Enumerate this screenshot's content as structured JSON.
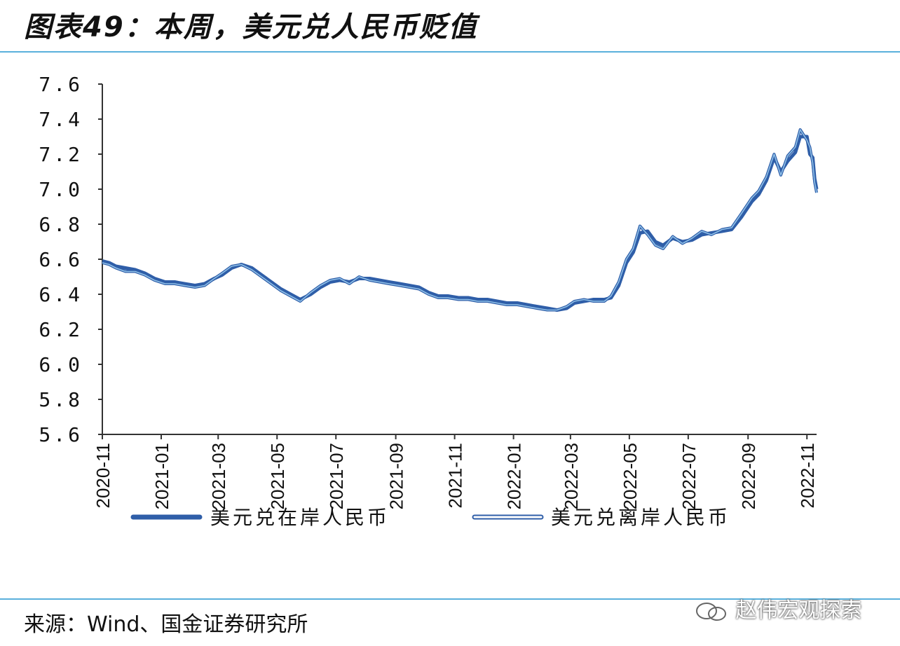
{
  "title": "图表49：本周，美元兑人民币贬值",
  "source": "来源：Wind、国金证券研究所",
  "watermark": "赵伟宏观探索",
  "colors": {
    "onshore": "#2f5ea8",
    "offshore": "#8fc0e8",
    "rule": "#5ab0dc",
    "axis": "#333333"
  },
  "chart_data": {
    "type": "line",
    "ylim": [
      5.6,
      7.6
    ],
    "yticks": [
      "7.6",
      "7.4",
      "7.2",
      "7.0",
      "6.8",
      "6.6",
      "6.4",
      "6.2",
      "6.0",
      "5.8",
      "5.6"
    ],
    "xticks": [
      "2020-11",
      "2021-01",
      "2021-03",
      "2021-05",
      "2021-07",
      "2021-09",
      "2021-11",
      "2022-01",
      "2022-03",
      "2022-05",
      "2022-07",
      "2022-09",
      "2022-11"
    ],
    "xlim": [
      "2020-11-01",
      "2022-11-11"
    ],
    "legend_position": "bottom",
    "series": [
      {
        "name": "美元兑在岸人民币",
        "points": [
          [
            "2020-11-01",
            6.59
          ],
          [
            "2020-11-08",
            6.58
          ],
          [
            "2020-11-15",
            6.56
          ],
          [
            "2020-11-25",
            6.55
          ],
          [
            "2020-12-05",
            6.54
          ],
          [
            "2020-12-15",
            6.52
          ],
          [
            "2020-12-25",
            6.49
          ],
          [
            "2021-01-05",
            6.47
          ],
          [
            "2021-01-15",
            6.47
          ],
          [
            "2021-01-25",
            6.46
          ],
          [
            "2021-02-05",
            6.45
          ],
          [
            "2021-02-15",
            6.46
          ],
          [
            "2021-02-25",
            6.49
          ],
          [
            "2021-03-05",
            6.51
          ],
          [
            "2021-03-15",
            6.55
          ],
          [
            "2021-03-25",
            6.57
          ],
          [
            "2021-04-05",
            6.55
          ],
          [
            "2021-04-15",
            6.51
          ],
          [
            "2021-04-25",
            6.47
          ],
          [
            "2021-05-05",
            6.43
          ],
          [
            "2021-05-15",
            6.4
          ],
          [
            "2021-05-25",
            6.37
          ],
          [
            "2021-06-05",
            6.4
          ],
          [
            "2021-06-15",
            6.44
          ],
          [
            "2021-06-25",
            6.47
          ],
          [
            "2021-07-05",
            6.48
          ],
          [
            "2021-07-15",
            6.47
          ],
          [
            "2021-07-25",
            6.49
          ],
          [
            "2021-08-05",
            6.49
          ],
          [
            "2021-08-15",
            6.48
          ],
          [
            "2021-08-25",
            6.47
          ],
          [
            "2021-09-05",
            6.46
          ],
          [
            "2021-09-15",
            6.45
          ],
          [
            "2021-09-25",
            6.44
          ],
          [
            "2021-10-05",
            6.41
          ],
          [
            "2021-10-15",
            6.39
          ],
          [
            "2021-10-25",
            6.39
          ],
          [
            "2021-11-05",
            6.38
          ],
          [
            "2021-11-15",
            6.38
          ],
          [
            "2021-11-25",
            6.37
          ],
          [
            "2021-12-05",
            6.37
          ],
          [
            "2021-12-15",
            6.36
          ],
          [
            "2021-12-25",
            6.35
          ],
          [
            "2022-01-05",
            6.35
          ],
          [
            "2022-01-15",
            6.34
          ],
          [
            "2022-01-25",
            6.33
          ],
          [
            "2022-02-05",
            6.32
          ],
          [
            "2022-02-15",
            6.31
          ],
          [
            "2022-02-25",
            6.32
          ],
          [
            "2022-03-05",
            6.35
          ],
          [
            "2022-03-15",
            6.36
          ],
          [
            "2022-03-25",
            6.37
          ],
          [
            "2022-04-05",
            6.37
          ],
          [
            "2022-04-12",
            6.38
          ],
          [
            "2022-04-20",
            6.45
          ],
          [
            "2022-04-28",
            6.58
          ],
          [
            "2022-05-05",
            6.64
          ],
          [
            "2022-05-12",
            6.75
          ],
          [
            "2022-05-20",
            6.76
          ],
          [
            "2022-05-28",
            6.7
          ],
          [
            "2022-06-05",
            6.68
          ],
          [
            "2022-06-15",
            6.72
          ],
          [
            "2022-06-25",
            6.7
          ],
          [
            "2022-07-05",
            6.71
          ],
          [
            "2022-07-15",
            6.74
          ],
          [
            "2022-07-25",
            6.75
          ],
          [
            "2022-08-05",
            6.76
          ],
          [
            "2022-08-15",
            6.77
          ],
          [
            "2022-08-25",
            6.84
          ],
          [
            "2022-09-05",
            6.93
          ],
          [
            "2022-09-12",
            6.97
          ],
          [
            "2022-09-20",
            7.05
          ],
          [
            "2022-09-28",
            7.18
          ],
          [
            "2022-10-05",
            7.1
          ],
          [
            "2022-10-12",
            7.16
          ],
          [
            "2022-10-20",
            7.21
          ],
          [
            "2022-10-25",
            7.3
          ],
          [
            "2022-11-01",
            7.3
          ],
          [
            "2022-11-04",
            7.2
          ],
          [
            "2022-11-07",
            7.18
          ],
          [
            "2022-11-09",
            7.06
          ],
          [
            "2022-11-11",
            7.0
          ]
        ]
      },
      {
        "name": "美元兑离岸人民币",
        "points": [
          [
            "2020-11-01",
            6.58
          ],
          [
            "2020-11-08",
            6.57
          ],
          [
            "2020-11-15",
            6.55
          ],
          [
            "2020-11-25",
            6.53
          ],
          [
            "2020-12-05",
            6.53
          ],
          [
            "2020-12-15",
            6.51
          ],
          [
            "2020-12-25",
            6.48
          ],
          [
            "2021-01-05",
            6.46
          ],
          [
            "2021-01-15",
            6.46
          ],
          [
            "2021-01-25",
            6.45
          ],
          [
            "2021-02-05",
            6.44
          ],
          [
            "2021-02-15",
            6.45
          ],
          [
            "2021-02-25",
            6.49
          ],
          [
            "2021-03-05",
            6.52
          ],
          [
            "2021-03-15",
            6.56
          ],
          [
            "2021-03-25",
            6.57
          ],
          [
            "2021-04-05",
            6.54
          ],
          [
            "2021-04-15",
            6.5
          ],
          [
            "2021-04-25",
            6.46
          ],
          [
            "2021-05-05",
            6.42
          ],
          [
            "2021-05-15",
            6.39
          ],
          [
            "2021-05-25",
            6.36
          ],
          [
            "2021-06-05",
            6.41
          ],
          [
            "2021-06-15",
            6.45
          ],
          [
            "2021-06-25",
            6.48
          ],
          [
            "2021-07-05",
            6.49
          ],
          [
            "2021-07-15",
            6.46
          ],
          [
            "2021-07-25",
            6.5
          ],
          [
            "2021-08-05",
            6.48
          ],
          [
            "2021-08-15",
            6.47
          ],
          [
            "2021-08-25",
            6.46
          ],
          [
            "2021-09-05",
            6.45
          ],
          [
            "2021-09-15",
            6.44
          ],
          [
            "2021-09-25",
            6.43
          ],
          [
            "2021-10-05",
            6.4
          ],
          [
            "2021-10-15",
            6.38
          ],
          [
            "2021-10-25",
            6.38
          ],
          [
            "2021-11-05",
            6.37
          ],
          [
            "2021-11-15",
            6.37
          ],
          [
            "2021-11-25",
            6.36
          ],
          [
            "2021-12-05",
            6.36
          ],
          [
            "2021-12-15",
            6.35
          ],
          [
            "2021-12-25",
            6.34
          ],
          [
            "2022-01-05",
            6.34
          ],
          [
            "2022-01-15",
            6.33
          ],
          [
            "2022-01-25",
            6.32
          ],
          [
            "2022-02-05",
            6.31
          ],
          [
            "2022-02-15",
            6.31
          ],
          [
            "2022-02-25",
            6.33
          ],
          [
            "2022-03-05",
            6.36
          ],
          [
            "2022-03-15",
            6.37
          ],
          [
            "2022-03-25",
            6.36
          ],
          [
            "2022-04-05",
            6.36
          ],
          [
            "2022-04-12",
            6.39
          ],
          [
            "2022-04-20",
            6.47
          ],
          [
            "2022-04-28",
            6.6
          ],
          [
            "2022-05-05",
            6.66
          ],
          [
            "2022-05-12",
            6.79
          ],
          [
            "2022-05-20",
            6.74
          ],
          [
            "2022-05-28",
            6.68
          ],
          [
            "2022-06-05",
            6.66
          ],
          [
            "2022-06-15",
            6.73
          ],
          [
            "2022-06-25",
            6.69
          ],
          [
            "2022-07-05",
            6.72
          ],
          [
            "2022-07-15",
            6.76
          ],
          [
            "2022-07-25",
            6.74
          ],
          [
            "2022-08-05",
            6.77
          ],
          [
            "2022-08-15",
            6.78
          ],
          [
            "2022-08-25",
            6.86
          ],
          [
            "2022-09-05",
            6.95
          ],
          [
            "2022-09-12",
            6.99
          ],
          [
            "2022-09-20",
            7.07
          ],
          [
            "2022-09-28",
            7.2
          ],
          [
            "2022-10-05",
            7.08
          ],
          [
            "2022-10-12",
            7.19
          ],
          [
            "2022-10-20",
            7.24
          ],
          [
            "2022-10-25",
            7.34
          ],
          [
            "2022-11-01",
            7.28
          ],
          [
            "2022-11-04",
            7.24
          ],
          [
            "2022-11-07",
            7.15
          ],
          [
            "2022-11-09",
            7.04
          ],
          [
            "2022-11-11",
            6.98
          ]
        ]
      }
    ]
  }
}
